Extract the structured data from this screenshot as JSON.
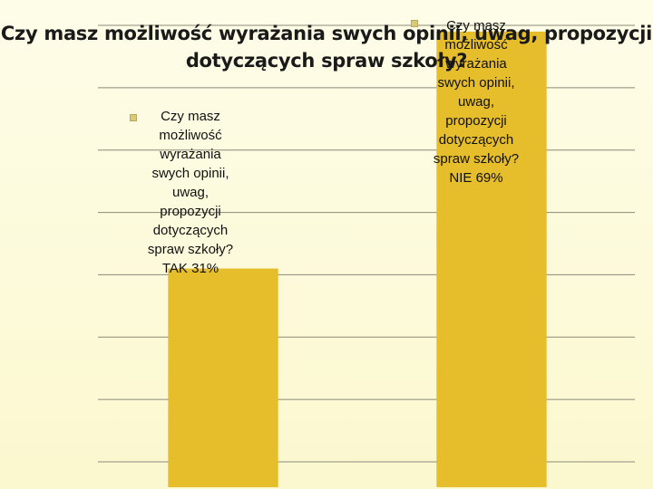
{
  "chart_data": {
    "type": "bar",
    "title": "Czy masz możliwość wyrażania swych opinii, uwag, propozycji dotyczących spraw szkoły?",
    "categories": [
      "TAK",
      "NIE"
    ],
    "values": [
      31,
      69
    ],
    "ylim": [
      0,
      70
    ],
    "grid": true,
    "legend": "none",
    "bar_color": "#e6bd2a",
    "data_labels": [
      "Czy masz możliwość wyrażania swych opinii, uwag, propozycji dotyczących spraw szkoły? TAK 31%",
      "Czy masz możliwość wyrażania swych opinii, uwag, propozycji dotyczących spraw szkoły? NIE 69%"
    ],
    "data_label_lines": [
      [
        "Czy masz",
        "możliwość",
        "wyrażania",
        "swych opinii,",
        "uwag,",
        "propozycji",
        "dotyczących",
        "spraw szkoły?",
        "TAK  31%"
      ],
      [
        "Czy masz",
        "możliwość",
        "wyrażania",
        "swych opinii,",
        "uwag,",
        "propozycji",
        "dotyczących",
        "spraw szkoły?",
        "NIE  69%"
      ]
    ]
  }
}
